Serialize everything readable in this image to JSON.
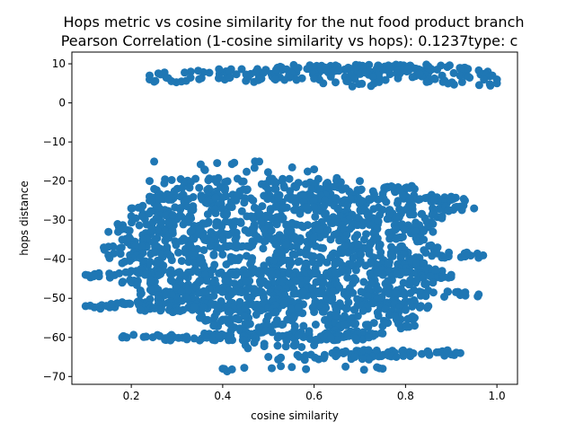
{
  "chart_data": {
    "type": "scatter",
    "title": "Hops metric vs cosine similarity for the nut food product branch",
    "subtitle": "Pearson Correlation (1-cosine similarity vs hops): 0.1237type: c",
    "xlabel": "cosine similarity",
    "ylabel": "hops distance",
    "xlim": [
      0.07,
      1.045
    ],
    "ylim": [
      -72,
      13
    ],
    "xticks": [
      0.2,
      0.4,
      0.6,
      0.8,
      1.0
    ],
    "xtick_labels": [
      "0.2",
      "0.4",
      "0.6",
      "0.8",
      "1.0"
    ],
    "yticks": [
      -70,
      -60,
      -50,
      -40,
      -30,
      -20,
      -10,
      0,
      10
    ],
    "ytick_labels": [
      "−70",
      "−60",
      "−50",
      "−40",
      "−30",
      "−20",
      "−10",
      "0",
      "10"
    ],
    "grid": false,
    "marker_color": "#1f77b4",
    "clusters": [
      {
        "hops": 9,
        "x_min": 0.52,
        "x_max": 0.93,
        "count": 70
      },
      {
        "hops": 8,
        "x_min": 0.33,
        "x_max": 0.98,
        "count": 70
      },
      {
        "hops": 7,
        "x_min": 0.24,
        "x_max": 0.99,
        "count": 40
      },
      {
        "hops": 6,
        "x_min": 0.24,
        "x_max": 1.0,
        "count": 40
      },
      {
        "hops": 5,
        "x_min": 0.62,
        "x_max": 1.0,
        "count": 15
      },
      {
        "hops": -15,
        "x_min": 0.25,
        "x_max": 0.48,
        "count": 5
      },
      {
        "hops": -17,
        "x_min": 0.36,
        "x_max": 0.6,
        "count": 6
      },
      {
        "hops": -20,
        "x_min": 0.24,
        "x_max": 0.7,
        "count": 40
      },
      {
        "hops": -22,
        "x_min": 0.25,
        "x_max": 0.82,
        "count": 60
      },
      {
        "hops": -24,
        "x_min": 0.24,
        "x_max": 0.9,
        "count": 80
      },
      {
        "hops": -25,
        "x_min": 0.24,
        "x_max": 0.93,
        "count": 90
      },
      {
        "hops": -27,
        "x_min": 0.2,
        "x_max": 0.95,
        "count": 90
      },
      {
        "hops": -29,
        "x_min": 0.2,
        "x_max": 0.88,
        "count": 90
      },
      {
        "hops": -31,
        "x_min": 0.17,
        "x_max": 0.86,
        "count": 90
      },
      {
        "hops": -33,
        "x_min": 0.15,
        "x_max": 0.86,
        "count": 90
      },
      {
        "hops": -35,
        "x_min": 0.18,
        "x_max": 0.84,
        "count": 90
      },
      {
        "hops": -37,
        "x_min": 0.14,
        "x_max": 0.87,
        "count": 90
      },
      {
        "hops": -39,
        "x_min": 0.15,
        "x_max": 0.97,
        "count": 90
      },
      {
        "hops": -41,
        "x_min": 0.18,
        "x_max": 0.84,
        "count": 90
      },
      {
        "hops": -43,
        "x_min": 0.2,
        "x_max": 0.88,
        "count": 90
      },
      {
        "hops": -44,
        "x_min": 0.1,
        "x_max": 0.9,
        "count": 110
      },
      {
        "hops": -46,
        "x_min": 0.18,
        "x_max": 0.86,
        "count": 90
      },
      {
        "hops": -48,
        "x_min": 0.22,
        "x_max": 0.85,
        "count": 90
      },
      {
        "hops": -49,
        "x_min": 0.22,
        "x_max": 0.96,
        "count": 80
      },
      {
        "hops": -51,
        "x_min": 0.18,
        "x_max": 0.82,
        "count": 80
      },
      {
        "hops": -52,
        "x_min": 0.1,
        "x_max": 0.85,
        "count": 90
      },
      {
        "hops": -53,
        "x_min": 0.22,
        "x_max": 0.8,
        "count": 60
      },
      {
        "hops": -55,
        "x_min": 0.35,
        "x_max": 0.82,
        "count": 50
      },
      {
        "hops": -57,
        "x_min": 0.38,
        "x_max": 0.82,
        "count": 50
      },
      {
        "hops": -59,
        "x_min": 0.36,
        "x_max": 0.75,
        "count": 60
      },
      {
        "hops": -60,
        "x_min": 0.18,
        "x_max": 0.72,
        "count": 80
      },
      {
        "hops": -62,
        "x_min": 0.45,
        "x_max": 0.6,
        "count": 10
      },
      {
        "hops": -64,
        "x_min": 0.64,
        "x_max": 0.92,
        "count": 50
      },
      {
        "hops": -65,
        "x_min": 0.5,
        "x_max": 0.78,
        "count": 25
      },
      {
        "hops": -68,
        "x_min": 0.4,
        "x_max": 0.75,
        "count": 12
      }
    ]
  }
}
